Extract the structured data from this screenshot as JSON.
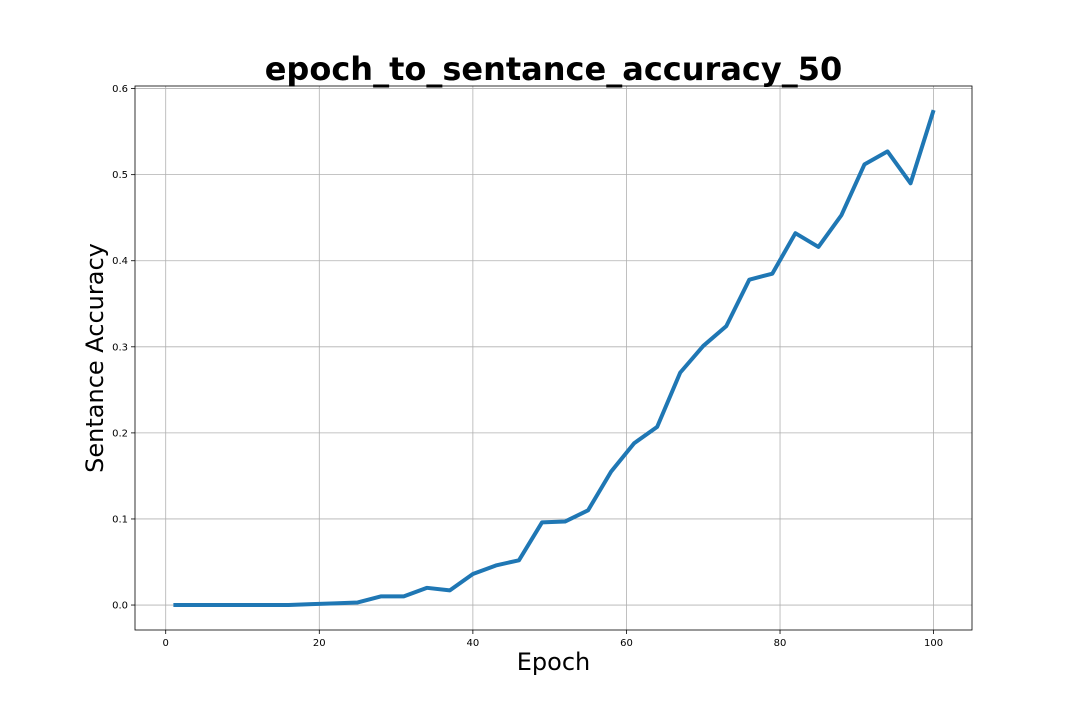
{
  "chart_data": {
    "type": "line",
    "title": "epoch_to_sentance_accuracy_50",
    "xlabel": "Epoch",
    "ylabel": "Sentance Accuracy",
    "xlim": [
      -4,
      105
    ],
    "ylim": [
      -0.029,
      0.603
    ],
    "xticks": [
      0,
      20,
      40,
      60,
      80,
      100
    ],
    "yticks": [
      0.0,
      0.1,
      0.2,
      0.3,
      0.4,
      0.5,
      0.6
    ],
    "xtick_labels": [
      "0",
      "20",
      "40",
      "60",
      "80",
      "100"
    ],
    "ytick_labels": [
      "0.0",
      "0.1",
      "0.2",
      "0.3",
      "0.4",
      "0.5",
      "0.6"
    ],
    "grid": true,
    "color": "#1f77b4",
    "series": [
      {
        "x": [
          1,
          4,
          7,
          10,
          13,
          16,
          19,
          22,
          25,
          28,
          31,
          34,
          37,
          40,
          43,
          46,
          49,
          52,
          55,
          58,
          61,
          64,
          67,
          70,
          73,
          76,
          79,
          82,
          85,
          88,
          91,
          94,
          97,
          100
        ],
        "values": [
          0.0,
          0.0,
          0.0,
          0.0,
          0.0,
          0.0,
          0.001,
          0.002,
          0.003,
          0.01,
          0.01,
          0.02,
          0.017,
          0.036,
          0.046,
          0.052,
          0.096,
          0.097,
          0.11,
          0.155,
          0.188,
          0.207,
          0.27,
          0.301,
          0.324,
          0.378,
          0.385,
          0.432,
          0.416,
          0.453,
          0.512,
          0.527,
          0.49,
          0.575
        ]
      }
    ]
  }
}
